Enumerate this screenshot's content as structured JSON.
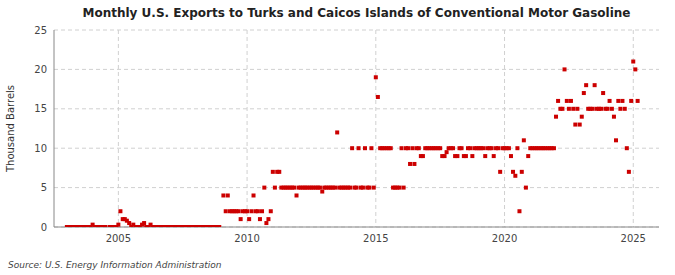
{
  "chart_data": {
    "type": "scatter",
    "title": "Monthly U.S. Exports to Turks and Caicos Islands of Conventional Motor Gasoline",
    "ylabel": "Thousand Barrels",
    "source": "Source: U.S. Energy Information Administration",
    "color": "#cc0000",
    "marker": "square",
    "grid": true,
    "xlim": [
      2002.5,
      2026.0
    ],
    "xticks": [
      2005,
      2010,
      2015,
      2020,
      2025
    ],
    "ylim": [
      0,
      25
    ],
    "yticks": [
      0,
      5,
      10,
      15,
      20,
      25
    ],
    "x": [
      2003.0,
      2003.08,
      2003.17,
      2003.25,
      2003.33,
      2003.42,
      2003.5,
      2003.58,
      2003.67,
      2003.75,
      2003.83,
      2003.92,
      2004.0,
      2004.08,
      2004.17,
      2004.25,
      2004.33,
      2004.42,
      2004.5,
      2004.67,
      2004.75,
      2004.83,
      2004.92,
      2005.0,
      2005.08,
      2005.17,
      2005.25,
      2005.33,
      2005.42,
      2005.5,
      2005.58,
      2005.67,
      2005.75,
      2005.83,
      2005.92,
      2006.0,
      2006.08,
      2006.17,
      2006.25,
      2006.33,
      2006.42,
      2006.5,
      2006.58,
      2006.67,
      2006.75,
      2006.83,
      2006.92,
      2007.0,
      2007.08,
      2007.17,
      2007.25,
      2007.33,
      2007.42,
      2007.5,
      2007.58,
      2007.67,
      2007.75,
      2007.83,
      2007.92,
      2008.0,
      2008.08,
      2008.17,
      2008.25,
      2008.33,
      2008.42,
      2008.5,
      2008.58,
      2008.67,
      2008.75,
      2008.83,
      2008.92,
      2009.08,
      2009.17,
      2009.25,
      2009.33,
      2009.42,
      2009.5,
      2009.58,
      2009.67,
      2009.75,
      2009.83,
      2009.92,
      2010.0,
      2010.08,
      2010.17,
      2010.25,
      2010.33,
      2010.42,
      2010.5,
      2010.58,
      2010.67,
      2010.75,
      2010.83,
      2010.92,
      2011.0,
      2011.08,
      2011.17,
      2011.25,
      2011.33,
      2011.42,
      2011.5,
      2011.58,
      2011.67,
      2011.75,
      2011.83,
      2011.92,
      2012.0,
      2012.08,
      2012.17,
      2012.25,
      2012.33,
      2012.42,
      2012.5,
      2012.58,
      2012.67,
      2012.75,
      2012.83,
      2012.92,
      2013.0,
      2013.08,
      2013.17,
      2013.25,
      2013.33,
      2013.42,
      2013.5,
      2013.58,
      2013.67,
      2013.75,
      2013.83,
      2013.92,
      2014.0,
      2014.08,
      2014.17,
      2014.25,
      2014.33,
      2014.42,
      2014.5,
      2014.58,
      2014.67,
      2014.75,
      2014.83,
      2014.92,
      2015.0,
      2015.08,
      2015.17,
      2015.25,
      2015.33,
      2015.42,
      2015.5,
      2015.58,
      2015.67,
      2015.75,
      2015.83,
      2015.92,
      2016.0,
      2016.08,
      2016.17,
      2016.25,
      2016.33,
      2016.42,
      2016.5,
      2016.58,
      2016.67,
      2016.75,
      2016.83,
      2016.92,
      2017.0,
      2017.08,
      2017.17,
      2017.25,
      2017.33,
      2017.42,
      2017.5,
      2017.58,
      2017.67,
      2017.75,
      2017.83,
      2017.92,
      2018.0,
      2018.08,
      2018.17,
      2018.25,
      2018.33,
      2018.42,
      2018.5,
      2018.58,
      2018.67,
      2018.75,
      2018.83,
      2018.92,
      2019.0,
      2019.08,
      2019.17,
      2019.25,
      2019.33,
      2019.42,
      2019.5,
      2019.58,
      2019.67,
      2019.75,
      2019.83,
      2019.92,
      2020.0,
      2020.08,
      2020.17,
      2020.25,
      2020.33,
      2020.42,
      2020.5,
      2020.58,
      2020.67,
      2020.75,
      2020.83,
      2020.92,
      2021.0,
      2021.08,
      2021.17,
      2021.25,
      2021.33,
      2021.42,
      2021.5,
      2021.58,
      2021.67,
      2021.75,
      2021.83,
      2021.92,
      2022.0,
      2022.08,
      2022.17,
      2022.25,
      2022.33,
      2022.42,
      2022.5,
      2022.58,
      2022.67,
      2022.75,
      2022.83,
      2022.92,
      2023.0,
      2023.08,
      2023.17,
      2023.25,
      2023.33,
      2023.42,
      2023.5,
      2023.58,
      2023.67,
      2023.75,
      2023.83,
      2023.92,
      2024.0,
      2024.08,
      2024.17,
      2024.25,
      2024.33,
      2024.42,
      2024.5,
      2024.58,
      2024.67,
      2024.75,
      2024.83,
      2024.92,
      2025.0,
      2025.08,
      2025.17
    ],
    "values": [
      0.0,
      0.0,
      0.0,
      0.0,
      0.0,
      0.0,
      0.0,
      0.0,
      0.0,
      0.0,
      0.0,
      0.0,
      0.3,
      0.0,
      0.0,
      0.0,
      0.0,
      0.0,
      0.0,
      0.0,
      0.0,
      0.0,
      0.0,
      0.3,
      2.0,
      1.0,
      1.0,
      0.8,
      0.5,
      0.0,
      0.3,
      0.0,
      0.0,
      0.0,
      0.3,
      0.5,
      0.0,
      0.0,
      0.3,
      0.0,
      0.0,
      0.0,
      0.0,
      0.0,
      0.0,
      0.0,
      0.0,
      0.0,
      0.0,
      0.0,
      0.0,
      0.0,
      0.0,
      0.0,
      0.0,
      0.0,
      0.0,
      0.0,
      0.0,
      0.0,
      0.0,
      0.0,
      0.0,
      0.0,
      0.0,
      0.0,
      0.0,
      0.0,
      0.0,
      0.0,
      0.0,
      4.0,
      2.0,
      4.0,
      2.0,
      2.0,
      2.0,
      2.0,
      2.0,
      1.0,
      2.0,
      2.0,
      2.0,
      1.0,
      2.0,
      4.0,
      2.0,
      2.0,
      1.0,
      2.0,
      5.0,
      0.5,
      1.0,
      2.0,
      7.0,
      5.0,
      7.0,
      7.0,
      5.0,
      5.0,
      5.0,
      5.0,
      5.0,
      5.0,
      5.0,
      4.0,
      5.0,
      5.0,
      5.0,
      5.0,
      5.0,
      5.0,
      5.0,
      5.0,
      5.0,
      5.0,
      5.0,
      4.5,
      5.0,
      5.0,
      5.0,
      5.0,
      5.0,
      5.0,
      12.0,
      5.0,
      5.0,
      5.0,
      5.0,
      5.0,
      5.0,
      10.0,
      5.0,
      5.0,
      10.0,
      5.0,
      5.0,
      10.0,
      5.0,
      5.0,
      10.0,
      5.0,
      19.0,
      16.5,
      10.0,
      10.0,
      10.0,
      10.0,
      10.0,
      10.0,
      5.0,
      5.0,
      5.0,
      5.0,
      10.0,
      5.0,
      10.0,
      10.0,
      8.0,
      10.0,
      8.0,
      10.0,
      10.0,
      9.0,
      9.0,
      10.0,
      10.0,
      10.0,
      10.0,
      10.0,
      10.0,
      10.0,
      10.0,
      9.0,
      9.0,
      9.5,
      10.0,
      10.0,
      10.0,
      9.0,
      9.0,
      10.0,
      10.0,
      9.0,
      9.0,
      10.0,
      10.0,
      9.0,
      10.0,
      10.0,
      10.0,
      10.0,
      10.0,
      9.0,
      10.0,
      10.0,
      10.0,
      9.0,
      10.0,
      10.0,
      7.0,
      10.0,
      10.0,
      10.0,
      10.0,
      9.0,
      7.0,
      6.5,
      10.0,
      2.0,
      7.0,
      11.0,
      5.0,
      9.0,
      10.0,
      10.0,
      10.0,
      10.0,
      10.0,
      10.0,
      10.0,
      10.0,
      10.0,
      10.0,
      10.0,
      10.0,
      14.0,
      16.0,
      15.0,
      15.0,
      20.0,
      16.0,
      15.0,
      16.0,
      15.0,
      13.0,
      15.0,
      13.0,
      14.0,
      17.0,
      18.0,
      15.0,
      15.0,
      15.0,
      18.0,
      15.0,
      15.0,
      15.0,
      17.0,
      15.0,
      15.0,
      16.0,
      15.0,
      14.0,
      11.0,
      16.0,
      15.0,
      16.0,
      15.0,
      10.0,
      7.0,
      16.0,
      21.0,
      20.0,
      16.0
    ]
  }
}
